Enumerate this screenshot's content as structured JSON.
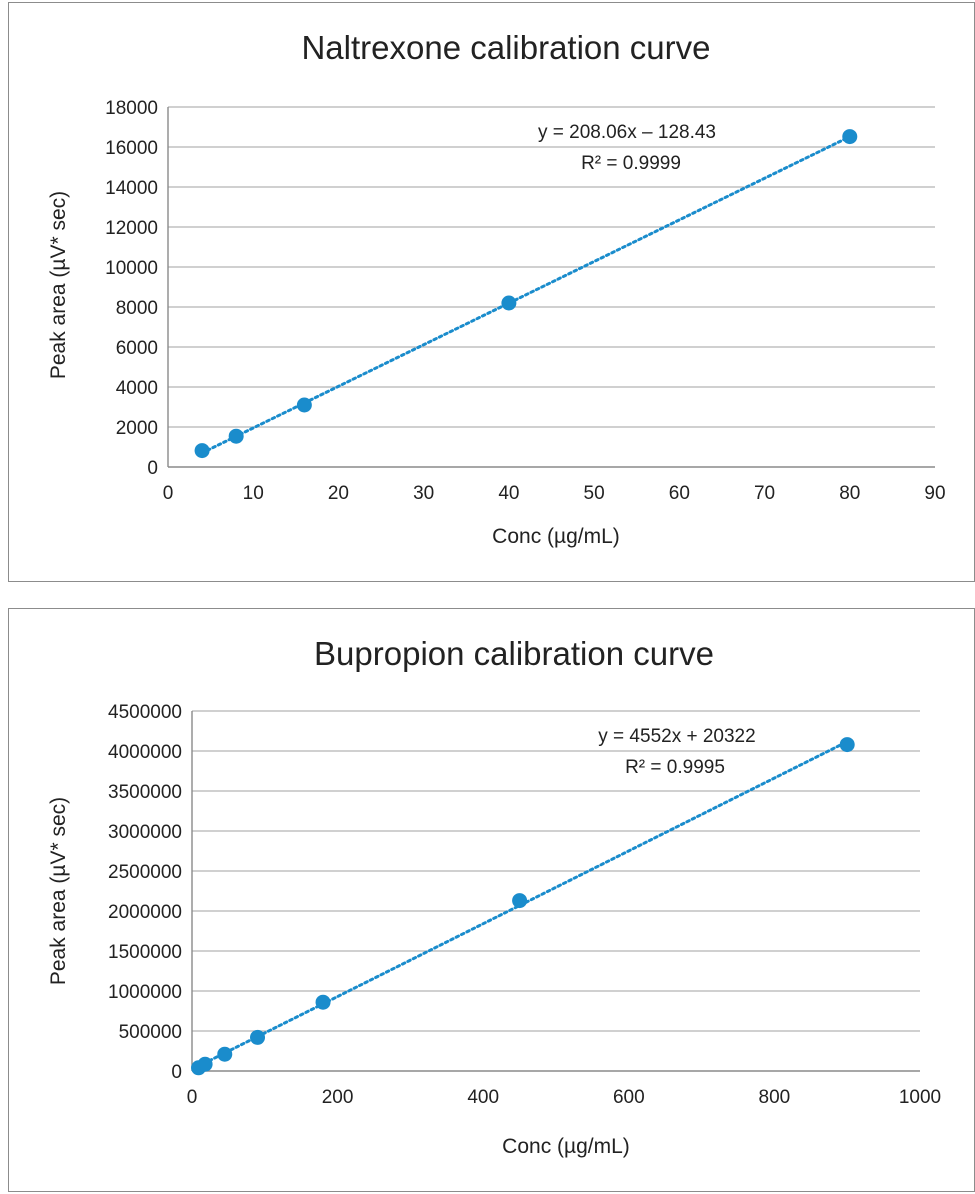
{
  "chart_data": [
    {
      "type": "scatter",
      "title": "Naltrexone calibration curve",
      "xlabel": "Conc (µg/mL)",
      "ylabel": "Peak area (µV* sec)",
      "xlim": [
        0,
        90
      ],
      "ylim": [
        0,
        18000
      ],
      "xticks": [
        0,
        10,
        20,
        30,
        40,
        50,
        60,
        70,
        80,
        90
      ],
      "yticks": [
        0,
        2000,
        4000,
        6000,
        8000,
        10000,
        12000,
        14000,
        16000,
        18000
      ],
      "grid": true,
      "legend": "none",
      "color": "#1a8ccc",
      "series": [
        {
          "x": [
            4,
            8,
            16,
            40,
            80
          ],
          "y": [
            820,
            1540,
            3100,
            8200,
            16520
          ]
        }
      ],
      "trendline": {
        "type": "linear",
        "slope": 208.06,
        "intercept": -128.43,
        "x_range": [
          4,
          80
        ],
        "equation": "y = 208.06x – 128.43",
        "r_squared": "R² = 0.9999"
      }
    },
    {
      "type": "scatter",
      "title": "Bupropion calibration curve",
      "xlabel": "Conc (µg/mL)",
      "ylabel": "Peak area (µV* sec)",
      "xlim": [
        0,
        1000
      ],
      "ylim": [
        0,
        4500000
      ],
      "xticks": [
        0,
        200,
        400,
        600,
        800,
        1000
      ],
      "yticks": [
        0,
        500000,
        1000000,
        1500000,
        2000000,
        2500000,
        3000000,
        3500000,
        4000000,
        4500000
      ],
      "grid": true,
      "legend": "none",
      "color": "#1a8ccc",
      "series": [
        {
          "x": [
            9,
            18,
            45,
            90,
            180,
            450,
            900
          ],
          "y": [
            40000,
            85000,
            210000,
            420000,
            860000,
            2130000,
            4080000
          ]
        }
      ],
      "trendline": {
        "type": "linear",
        "slope": 4552,
        "intercept": 20322,
        "x_range": [
          9,
          900
        ],
        "equation": "y = 4552x + 20322",
        "r_squared": "R² = 0.9995"
      }
    }
  ]
}
